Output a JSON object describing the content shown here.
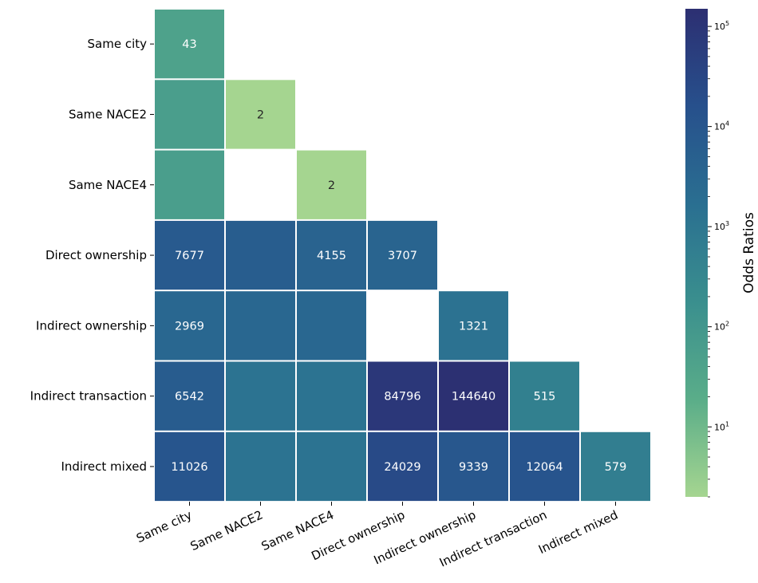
{
  "chart_data": {
    "type": "heatmap",
    "rows": [
      "Same city",
      "Same NACE2",
      "Same NACE4",
      "Direct ownership",
      "Indirect ownership",
      "Indirect transaction",
      "Indirect mixed"
    ],
    "columns": [
      "Same city",
      "Same NACE2",
      "Same NACE4",
      "Direct ownership",
      "Indirect ownership",
      "Indirect transaction",
      "Indirect mixed"
    ],
    "cells": [
      {
        "row": 0,
        "col": 0,
        "value": 43,
        "label": "43"
      },
      {
        "row": 1,
        "col": 0,
        "value": 60,
        "label": ""
      },
      {
        "row": 1,
        "col": 1,
        "value": 2,
        "label": "2"
      },
      {
        "row": 2,
        "col": 0,
        "value": 60,
        "label": ""
      },
      {
        "row": 2,
        "col": 2,
        "value": 2,
        "label": "2"
      },
      {
        "row": 3,
        "col": 0,
        "value": 7677,
        "label": "7677"
      },
      {
        "row": 3,
        "col": 1,
        "value": 6000,
        "label": ""
      },
      {
        "row": 3,
        "col": 2,
        "value": 4155,
        "label": "4155"
      },
      {
        "row": 3,
        "col": 3,
        "value": 3707,
        "label": "3707"
      },
      {
        "row": 4,
        "col": 0,
        "value": 2969,
        "label": "2969"
      },
      {
        "row": 4,
        "col": 1,
        "value": 3000,
        "label": ""
      },
      {
        "row": 4,
        "col": 2,
        "value": 3000,
        "label": ""
      },
      {
        "row": 4,
        "col": 4,
        "value": 1321,
        "label": "1321"
      },
      {
        "row": 5,
        "col": 0,
        "value": 6542,
        "label": "6542"
      },
      {
        "row": 5,
        "col": 1,
        "value": 1300,
        "label": ""
      },
      {
        "row": 5,
        "col": 2,
        "value": 1300,
        "label": ""
      },
      {
        "row": 5,
        "col": 3,
        "value": 84796,
        "label": "84796"
      },
      {
        "row": 5,
        "col": 4,
        "value": 144640,
        "label": "144640"
      },
      {
        "row": 5,
        "col": 5,
        "value": 515,
        "label": "515"
      },
      {
        "row": 6,
        "col": 0,
        "value": 11026,
        "label": "11026"
      },
      {
        "row": 6,
        "col": 1,
        "value": 1300,
        "label": ""
      },
      {
        "row": 6,
        "col": 2,
        "value": 1300,
        "label": ""
      },
      {
        "row": 6,
        "col": 3,
        "value": 24029,
        "label": "24029"
      },
      {
        "row": 6,
        "col": 4,
        "value": 9339,
        "label": "9339"
      },
      {
        "row": 6,
        "col": 5,
        "value": 12064,
        "label": "12064"
      },
      {
        "row": 6,
        "col": 6,
        "value": 579,
        "label": "579"
      }
    ],
    "colorbar": {
      "title": "Odds Ratios",
      "scale": "log",
      "range": [
        2,
        150000
      ],
      "ticks": [
        {
          "value": 10,
          "base": "10",
          "exp": "1"
        },
        {
          "value": 100,
          "base": "10",
          "exp": "2"
        },
        {
          "value": 1000,
          "base": "10",
          "exp": "3"
        },
        {
          "value": 10000,
          "base": "10",
          "exp": "4"
        },
        {
          "value": 100000,
          "base": "10",
          "exp": "5"
        }
      ],
      "colormap": [
        "#a5d590",
        "#5aad89",
        "#3a8f8e",
        "#2a6f91",
        "#27508c",
        "#2c2f72"
      ]
    },
    "grid": false,
    "mask": "upper triangle (above diagonal) hidden",
    "cell_border_color": "#ffffff"
  }
}
